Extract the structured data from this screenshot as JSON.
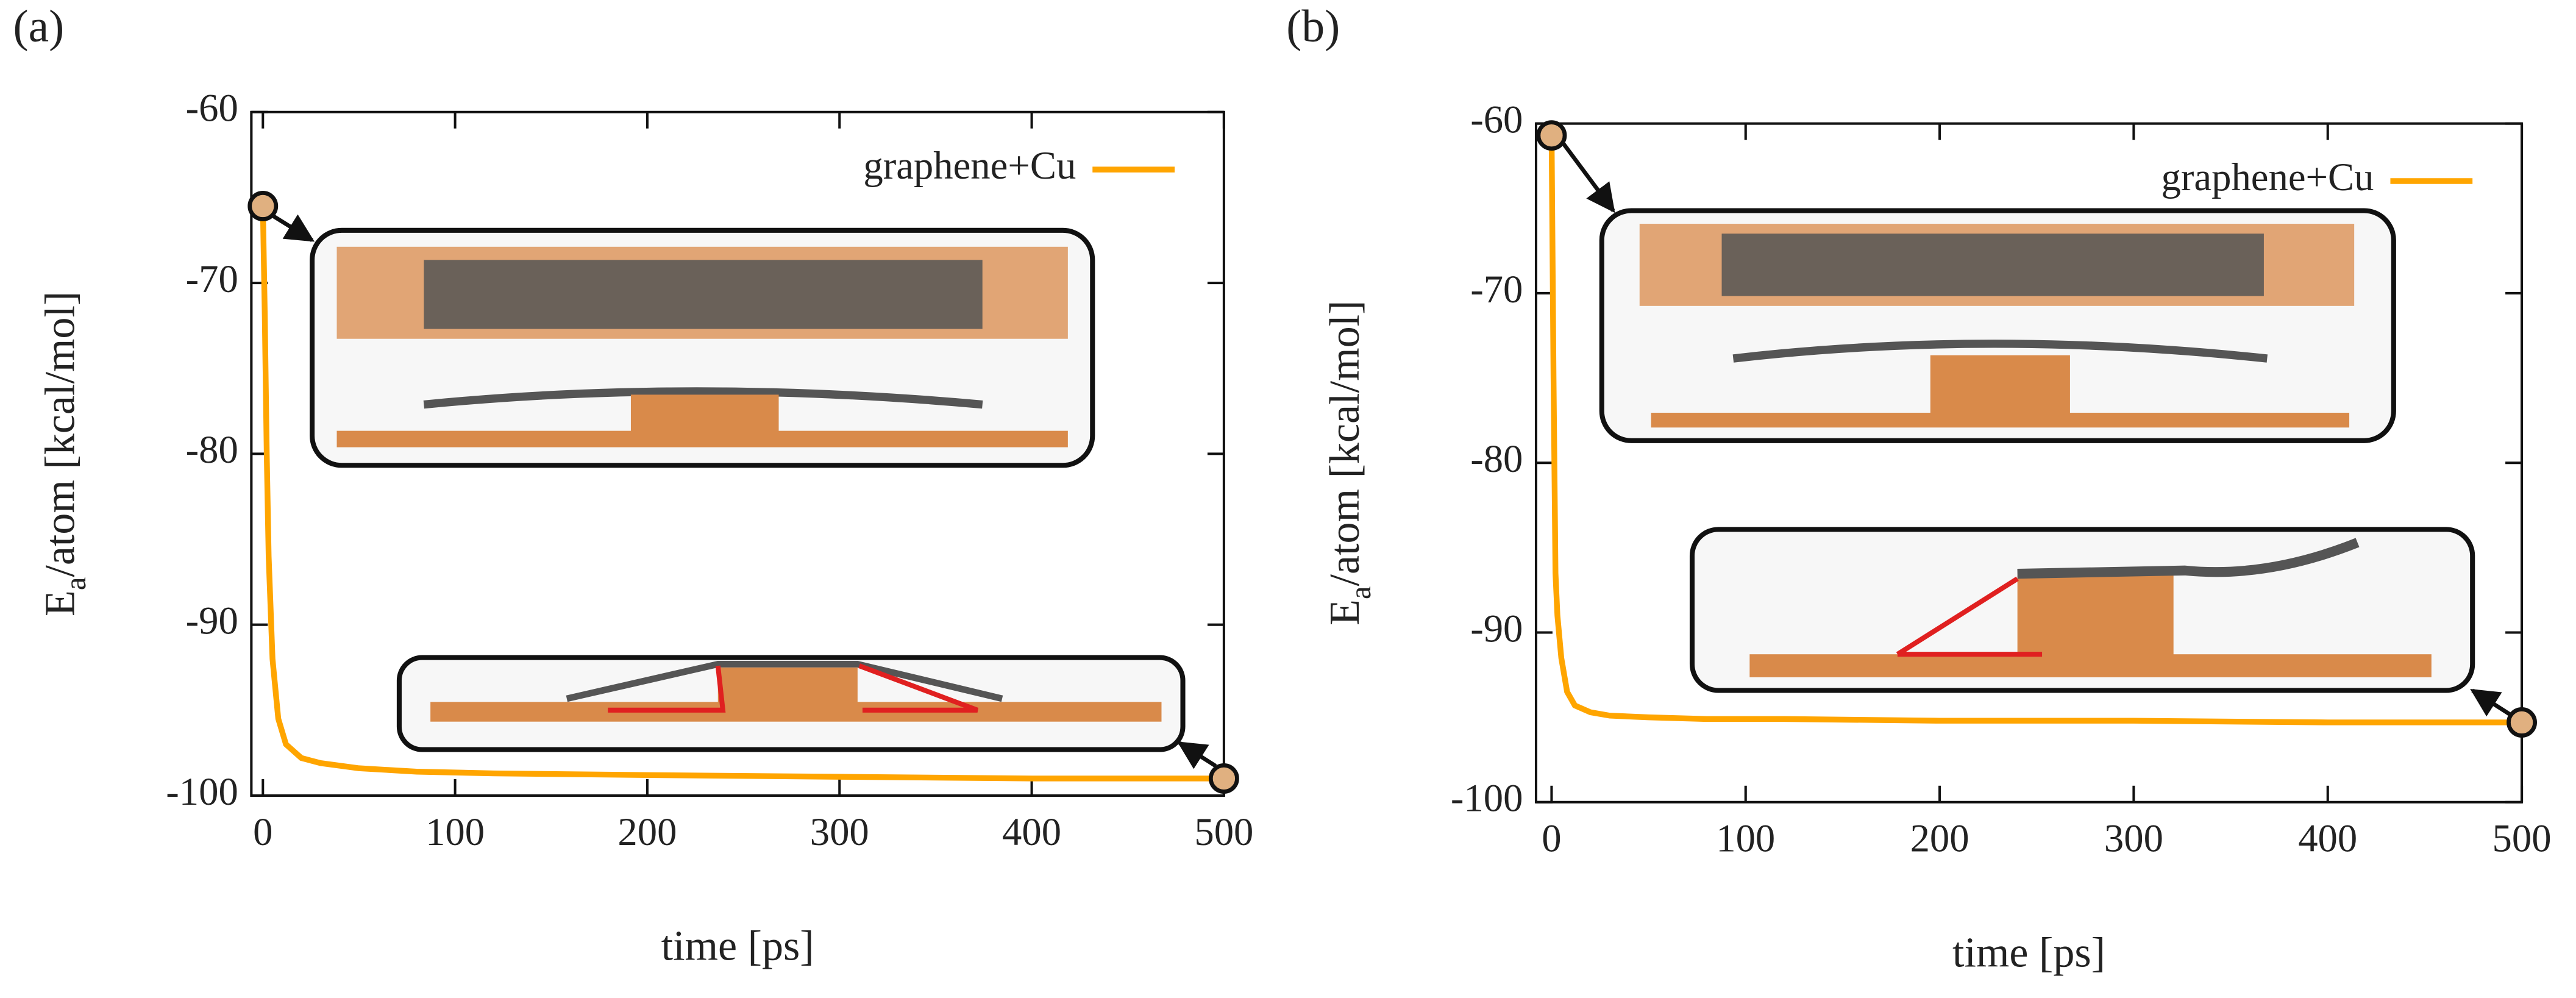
{
  "chart_data": [
    {
      "type": "line",
      "panel_label": "(a)",
      "xlabel": "time [ps]",
      "ylabel": {
        "main": "E",
        "sub": "a",
        "rest": "/atom [kcal/mol]"
      },
      "x": [
        0,
        1,
        2,
        3,
        5,
        8,
        12,
        20,
        30,
        50,
        80,
        120,
        200,
        300,
        400,
        500
      ],
      "series": [
        {
          "name": "graphene+Cu",
          "color": "#ffa500",
          "values": [
            -65.5,
            -72,
            -80,
            -86,
            -92,
            -95.5,
            -97,
            -97.8,
            -98.1,
            -98.4,
            -98.6,
            -98.7,
            -98.8,
            -98.9,
            -99,
            -99
          ]
        }
      ],
      "xlim": [
        -6,
        500
      ],
      "ylim": [
        -100,
        -60
      ],
      "xticks": [
        0,
        100,
        200,
        300,
        400,
        500
      ],
      "yticks": [
        -100,
        -90,
        -80,
        -70,
        -60
      ],
      "legend": "upper right"
    },
    {
      "type": "line",
      "panel_label": "(b)",
      "xlabel": "time [ps]",
      "ylabel": {
        "main": "E",
        "sub": "a",
        "rest": "/atom [kcal/mol]"
      },
      "x": [
        0,
        1,
        2,
        3,
        5,
        8,
        12,
        20,
        30,
        50,
        80,
        120,
        200,
        300,
        400,
        500
      ],
      "series": [
        {
          "name": "graphene+Cu",
          "color": "#ffa500",
          "values": [
            -60.7,
            -75,
            -86.5,
            -89,
            -91.5,
            -93.5,
            -94.3,
            -94.7,
            -94.9,
            -95,
            -95.1,
            -95.1,
            -95.2,
            -95.2,
            -95.3,
            -95.3
          ]
        }
      ],
      "xlim": [
        -8,
        500
      ],
      "ylim": [
        -100,
        -60
      ],
      "xticks": [
        0,
        100,
        200,
        300,
        400,
        500
      ],
      "yticks": [
        -100,
        -90,
        -80,
        -70,
        -60
      ],
      "legend": "upper right"
    }
  ]
}
